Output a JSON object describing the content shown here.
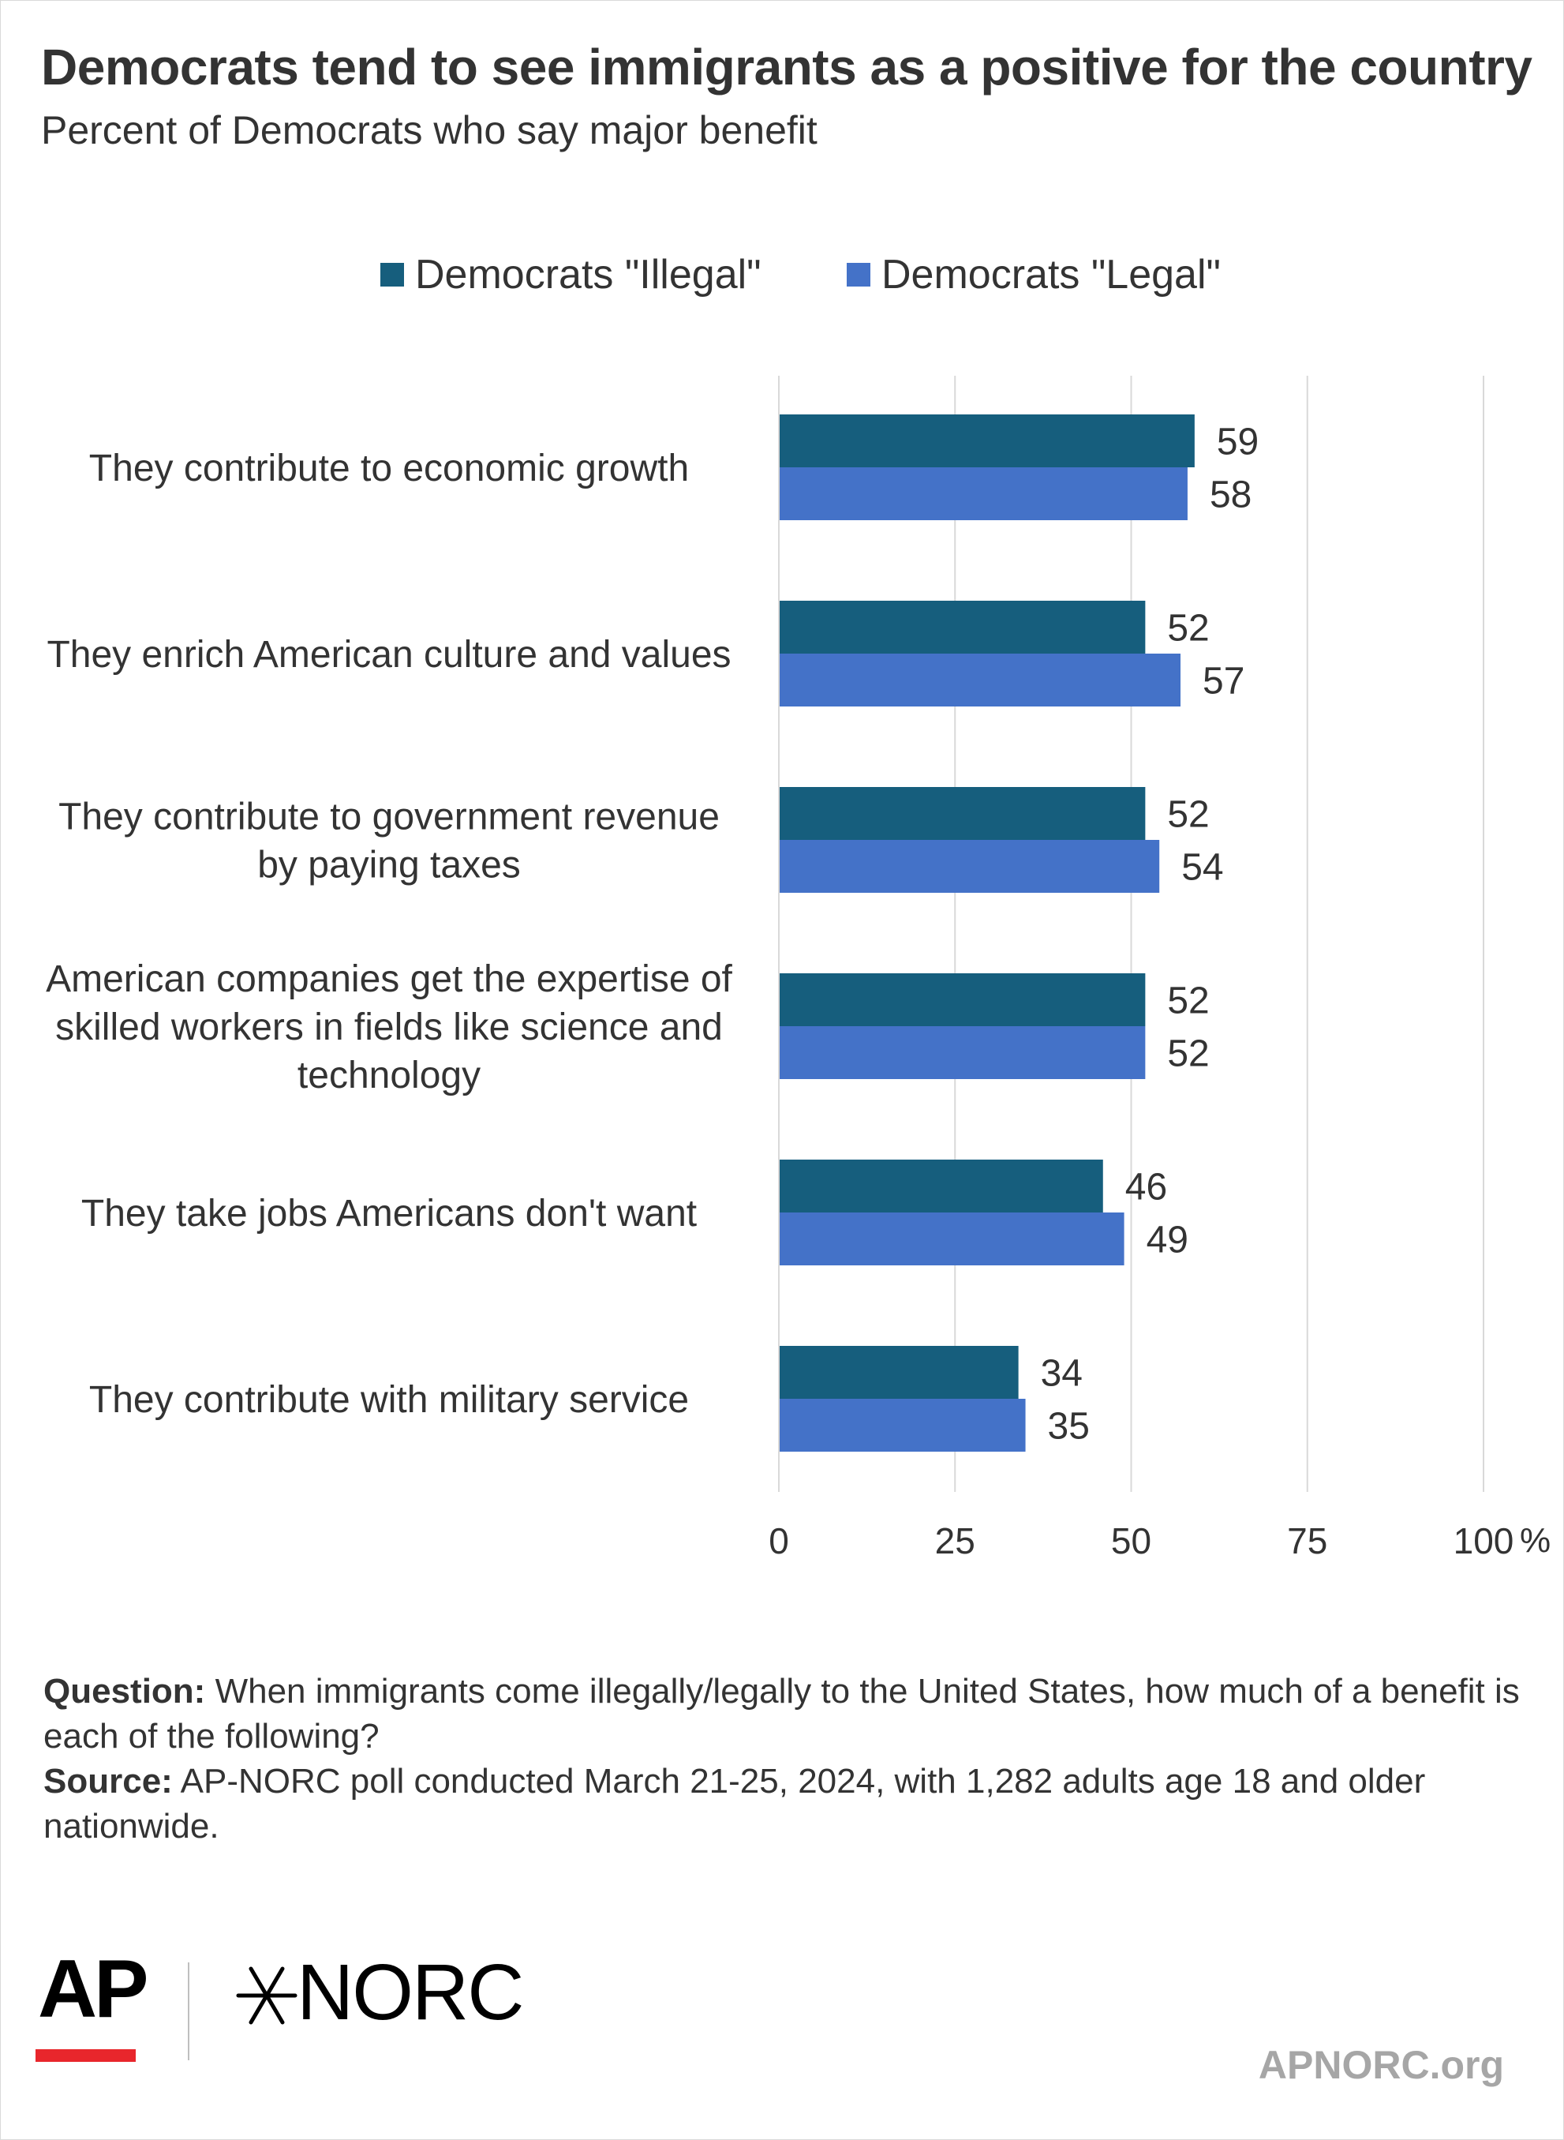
{
  "title": "Democrats tend to see immigrants as a positive for the country",
  "subtitle": "Percent of Democrats who say major benefit",
  "colors": {
    "illegal": "#165e7d",
    "legal": "#4472c8",
    "grid": "#d9d9d9",
    "text": "#333333",
    "ap_red": "#e8262c",
    "site": "#a6a6a6"
  },
  "chart_data": {
    "type": "bar",
    "orientation": "horizontal",
    "categories": [
      [
        "They contribute to economic growth"
      ],
      [
        "They enrich American culture and values"
      ],
      [
        "They contribute to government revenue",
        "by paying taxes"
      ],
      [
        "American companies get the expertise of",
        "skilled workers in fields like science and",
        "technology"
      ],
      [
        "They take jobs Americans don't want"
      ],
      [
        "They contribute with military service"
      ]
    ],
    "series": [
      {
        "name": "Democrats \"Illegal\"",
        "values": [
          59,
          52,
          52,
          52,
          46,
          34
        ]
      },
      {
        "name": "Democrats \"Legal\"",
        "values": [
          58,
          57,
          54,
          52,
          49,
          35
        ]
      }
    ],
    "xlim": [
      0,
      100
    ],
    "xticks": [
      "0",
      "25",
      "50",
      "75",
      "100"
    ],
    "x_unit": "%",
    "grid": true,
    "legend_position": "top-center",
    "data_labels": true
  },
  "notes": {
    "question_label": "Question:",
    "question_text": "When immigrants come illegally/legally to the United States, how much of a benefit is each of the following?",
    "source_label": "Source:",
    "source_text": "AP-NORC poll conducted March 21-25, 2024, with 1,282 adults age 18 and older nationwide."
  },
  "logos": {
    "ap": "AP",
    "norc": "NORC",
    "star_icon": "norc-star-icon",
    "site": "APNORC.org"
  }
}
